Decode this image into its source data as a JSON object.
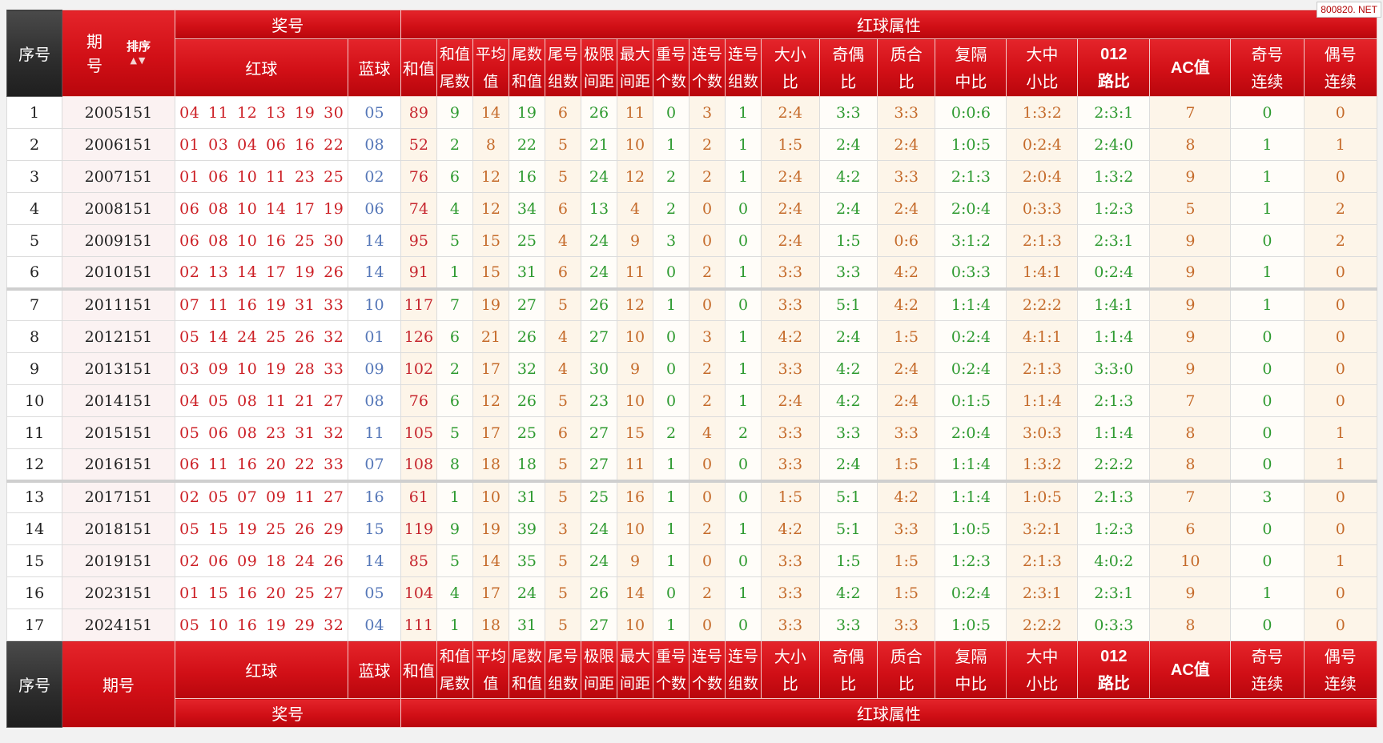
{
  "watermark": "800820. NET",
  "header": {
    "seq": "序号",
    "period_line1": "期",
    "period_line2": "号",
    "sort_label": "排序",
    "sort_arrows": "▲▼",
    "award": "奖号",
    "red_attr": "红球属性",
    "red_ball": "红球",
    "blue_ball": "蓝球",
    "sum": "和值",
    "cols": [
      [
        "和值",
        "尾数"
      ],
      [
        "平均",
        "值"
      ],
      [
        "尾数",
        "和值"
      ],
      [
        "尾号",
        "组数"
      ],
      [
        "极限",
        "间距"
      ],
      [
        "最大",
        "间距"
      ],
      [
        "重号",
        "个数"
      ],
      [
        "连号",
        "个数"
      ],
      [
        "连号",
        "组数"
      ],
      [
        "大小",
        "比"
      ],
      [
        "奇偶",
        "比"
      ],
      [
        "质合",
        "比"
      ],
      [
        "复隔",
        "中比"
      ],
      [
        "大中",
        "小比"
      ],
      [
        "012",
        "路比"
      ],
      [
        "AC值",
        ""
      ],
      [
        "奇号",
        "连续"
      ],
      [
        "偶号",
        "连续"
      ]
    ]
  },
  "footer": {
    "seq": "序号",
    "period": "期号",
    "award": "奖号",
    "red_attr": "红球属性"
  },
  "rows": [
    {
      "idx": "1",
      "period": "2005151",
      "red": [
        "04",
        "11",
        "12",
        "13",
        "19",
        "30"
      ],
      "blue": "05",
      "vals": [
        "89",
        "9",
        "14",
        "19",
        "6",
        "26",
        "11",
        "0",
        "3",
        "1",
        "2:4",
        "3:3",
        "3:3",
        "0:0:6",
        "1:3:2",
        "2:3:1",
        "7",
        "0",
        "0"
      ]
    },
    {
      "idx": "2",
      "period": "2006151",
      "red": [
        "01",
        "03",
        "04",
        "06",
        "16",
        "22"
      ],
      "blue": "08",
      "vals": [
        "52",
        "2",
        "8",
        "22",
        "5",
        "21",
        "10",
        "1",
        "2",
        "1",
        "1:5",
        "2:4",
        "2:4",
        "1:0:5",
        "0:2:4",
        "2:4:0",
        "8",
        "1",
        "1"
      ]
    },
    {
      "idx": "3",
      "period": "2007151",
      "red": [
        "01",
        "06",
        "10",
        "11",
        "23",
        "25"
      ],
      "blue": "02",
      "vals": [
        "76",
        "6",
        "12",
        "16",
        "5",
        "24",
        "12",
        "2",
        "2",
        "1",
        "2:4",
        "4:2",
        "3:3",
        "2:1:3",
        "2:0:4",
        "1:3:2",
        "9",
        "1",
        "0"
      ]
    },
    {
      "idx": "4",
      "period": "2008151",
      "red": [
        "06",
        "08",
        "10",
        "14",
        "17",
        "19"
      ],
      "blue": "06",
      "vals": [
        "74",
        "4",
        "12",
        "34",
        "6",
        "13",
        "4",
        "2",
        "0",
        "0",
        "2:4",
        "2:4",
        "2:4",
        "2:0:4",
        "0:3:3",
        "1:2:3",
        "5",
        "1",
        "2"
      ]
    },
    {
      "idx": "5",
      "period": "2009151",
      "red": [
        "06",
        "08",
        "10",
        "16",
        "25",
        "30"
      ],
      "blue": "14",
      "vals": [
        "95",
        "5",
        "15",
        "25",
        "4",
        "24",
        "9",
        "3",
        "0",
        "0",
        "2:4",
        "1:5",
        "0:6",
        "3:1:2",
        "2:1:3",
        "2:3:1",
        "9",
        "0",
        "2"
      ]
    },
    {
      "idx": "6",
      "period": "2010151",
      "red": [
        "02",
        "13",
        "14",
        "17",
        "19",
        "26"
      ],
      "blue": "14",
      "vals": [
        "91",
        "1",
        "15",
        "31",
        "6",
        "24",
        "11",
        "0",
        "2",
        "1",
        "3:3",
        "3:3",
        "4:2",
        "0:3:3",
        "1:4:1",
        "0:2:4",
        "9",
        "1",
        "0"
      ]
    },
    {
      "idx": "7",
      "period": "2011151",
      "red": [
        "07",
        "11",
        "16",
        "19",
        "31",
        "33"
      ],
      "blue": "10",
      "vals": [
        "117",
        "7",
        "19",
        "27",
        "5",
        "26",
        "12",
        "1",
        "0",
        "0",
        "3:3",
        "5:1",
        "4:2",
        "1:1:4",
        "2:2:2",
        "1:4:1",
        "9",
        "1",
        "0"
      ]
    },
    {
      "idx": "8",
      "period": "2012151",
      "red": [
        "05",
        "14",
        "24",
        "25",
        "26",
        "32"
      ],
      "blue": "01",
      "vals": [
        "126",
        "6",
        "21",
        "26",
        "4",
        "27",
        "10",
        "0",
        "3",
        "1",
        "4:2",
        "2:4",
        "1:5",
        "0:2:4",
        "4:1:1",
        "1:1:4",
        "9",
        "0",
        "0"
      ]
    },
    {
      "idx": "9",
      "period": "2013151",
      "red": [
        "03",
        "09",
        "10",
        "19",
        "28",
        "33"
      ],
      "blue": "09",
      "vals": [
        "102",
        "2",
        "17",
        "32",
        "4",
        "30",
        "9",
        "0",
        "2",
        "1",
        "3:3",
        "4:2",
        "2:4",
        "0:2:4",
        "2:1:3",
        "3:3:0",
        "9",
        "0",
        "0"
      ]
    },
    {
      "idx": "10",
      "period": "2014151",
      "red": [
        "04",
        "05",
        "08",
        "11",
        "21",
        "27"
      ],
      "blue": "08",
      "vals": [
        "76",
        "6",
        "12",
        "26",
        "5",
        "23",
        "10",
        "0",
        "2",
        "1",
        "2:4",
        "4:2",
        "2:4",
        "0:1:5",
        "1:1:4",
        "2:1:3",
        "7",
        "0",
        "0"
      ]
    },
    {
      "idx": "11",
      "period": "2015151",
      "red": [
        "05",
        "06",
        "08",
        "23",
        "31",
        "32"
      ],
      "blue": "11",
      "vals": [
        "105",
        "5",
        "17",
        "25",
        "6",
        "27",
        "15",
        "2",
        "4",
        "2",
        "3:3",
        "3:3",
        "3:3",
        "2:0:4",
        "3:0:3",
        "1:1:4",
        "8",
        "0",
        "1"
      ]
    },
    {
      "idx": "12",
      "period": "2016151",
      "red": [
        "06",
        "11",
        "16",
        "20",
        "22",
        "33"
      ],
      "blue": "07",
      "vals": [
        "108",
        "8",
        "18",
        "18",
        "5",
        "27",
        "11",
        "1",
        "0",
        "0",
        "3:3",
        "2:4",
        "1:5",
        "1:1:4",
        "1:3:2",
        "2:2:2",
        "8",
        "0",
        "1"
      ]
    },
    {
      "idx": "13",
      "period": "2017151",
      "red": [
        "02",
        "05",
        "07",
        "09",
        "11",
        "27"
      ],
      "blue": "16",
      "vals": [
        "61",
        "1",
        "10",
        "31",
        "5",
        "25",
        "16",
        "1",
        "0",
        "0",
        "1:5",
        "5:1",
        "4:2",
        "1:1:4",
        "1:0:5",
        "2:1:3",
        "7",
        "3",
        "0"
      ]
    },
    {
      "idx": "14",
      "period": "2018151",
      "red": [
        "05",
        "15",
        "19",
        "25",
        "26",
        "29"
      ],
      "blue": "15",
      "vals": [
        "119",
        "9",
        "19",
        "39",
        "3",
        "24",
        "10",
        "1",
        "2",
        "1",
        "4:2",
        "5:1",
        "3:3",
        "1:0:5",
        "3:2:1",
        "1:2:3",
        "6",
        "0",
        "0"
      ]
    },
    {
      "idx": "15",
      "period": "2019151",
      "red": [
        "02",
        "06",
        "09",
        "18",
        "24",
        "26"
      ],
      "blue": "14",
      "vals": [
        "85",
        "5",
        "14",
        "35",
        "5",
        "24",
        "9",
        "1",
        "0",
        "0",
        "3:3",
        "1:5",
        "1:5",
        "1:2:3",
        "2:1:3",
        "4:0:2",
        "10",
        "0",
        "1"
      ]
    },
    {
      "idx": "16",
      "period": "2023151",
      "red": [
        "01",
        "15",
        "16",
        "20",
        "25",
        "27"
      ],
      "blue": "05",
      "vals": [
        "104",
        "4",
        "17",
        "24",
        "5",
        "26",
        "14",
        "0",
        "2",
        "1",
        "3:3",
        "4:2",
        "1:5",
        "0:2:4",
        "2:3:1",
        "2:3:1",
        "9",
        "1",
        "0"
      ]
    },
    {
      "idx": "17",
      "period": "2024151",
      "red": [
        "05",
        "10",
        "16",
        "19",
        "29",
        "32"
      ],
      "blue": "04",
      "vals": [
        "111",
        "1",
        "18",
        "31",
        "5",
        "27",
        "10",
        "1",
        "0",
        "0",
        "3:3",
        "3:3",
        "3:3",
        "1:0:5",
        "2:2:2",
        "0:3:3",
        "8",
        "0",
        "0"
      ]
    }
  ]
}
